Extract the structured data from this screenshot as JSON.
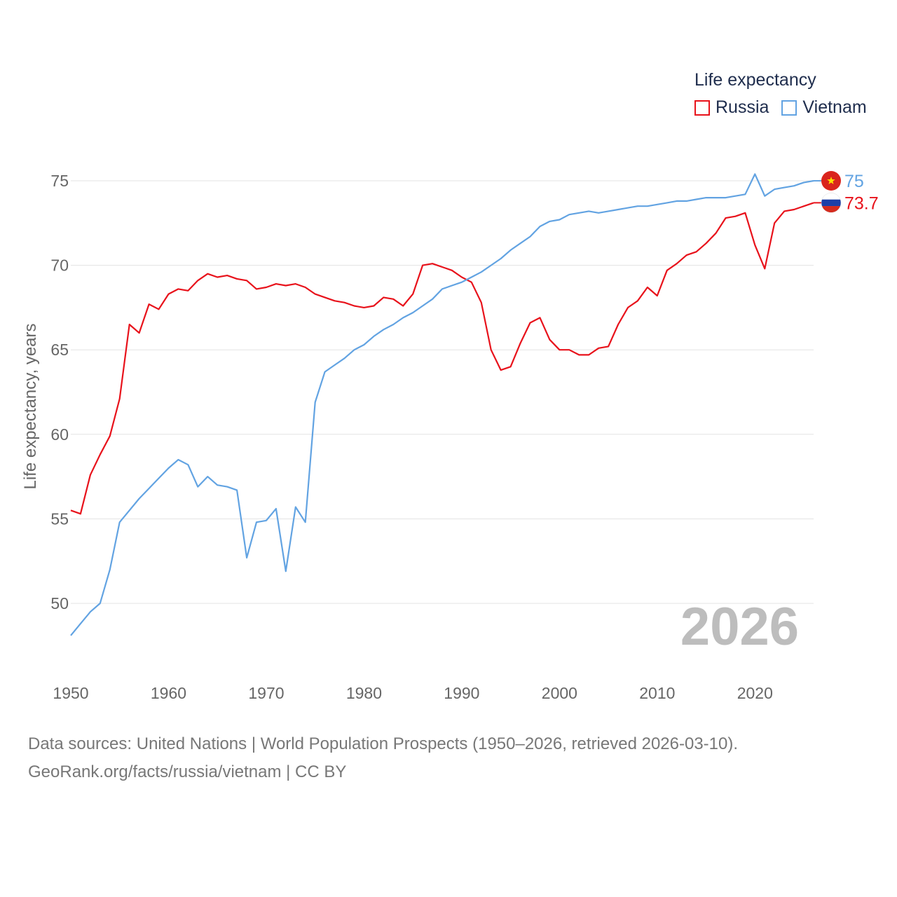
{
  "legend": {
    "title": "Life expectancy",
    "items": [
      {
        "name": "Russia",
        "color": "#e8121b"
      },
      {
        "name": "Vietnam",
        "color": "#62a3e2"
      }
    ]
  },
  "footer": {
    "line1": "Data sources: United Nations | World Population Prospects (1950–2026, retrieved 2026-03-10).",
    "line2": "GeoRank.org/facts/russia/vietnam | CC BY"
  },
  "chart_data": {
    "type": "line",
    "title": "",
    "xlabel": "",
    "ylabel": "Life expectancy, years",
    "xlim": [
      1950,
      2026
    ],
    "ylim": [
      47,
      78
    ],
    "x_ticks": [
      1950,
      1960,
      1970,
      1980,
      1990,
      2000,
      2010,
      2020
    ],
    "y_ticks": [
      50,
      55,
      60,
      65,
      70,
      75
    ],
    "year_watermark": "2026",
    "x": [
      1950,
      1951,
      1952,
      1953,
      1954,
      1955,
      1956,
      1957,
      1958,
      1959,
      1960,
      1961,
      1962,
      1963,
      1964,
      1965,
      1966,
      1967,
      1968,
      1969,
      1970,
      1971,
      1972,
      1973,
      1974,
      1975,
      1976,
      1977,
      1978,
      1979,
      1980,
      1981,
      1982,
      1983,
      1984,
      1985,
      1986,
      1987,
      1988,
      1989,
      1990,
      1991,
      1992,
      1993,
      1994,
      1995,
      1996,
      1997,
      1998,
      1999,
      2000,
      2001,
      2002,
      2003,
      2004,
      2005,
      2006,
      2007,
      2008,
      2009,
      2010,
      2011,
      2012,
      2013,
      2014,
      2015,
      2016,
      2017,
      2018,
      2019,
      2020,
      2021,
      2022,
      2023,
      2024,
      2025,
      2026
    ],
    "series": [
      {
        "name": "Russia",
        "color": "#e8121b",
        "end_label": "73.7",
        "flag": "russia-flag",
        "values": [
          55.5,
          55.3,
          57.6,
          58.8,
          59.9,
          62.1,
          66.5,
          66.0,
          67.7,
          67.4,
          68.3,
          68.6,
          68.5,
          69.1,
          69.5,
          69.3,
          69.4,
          69.2,
          69.1,
          68.6,
          68.7,
          68.9,
          68.8,
          68.9,
          68.7,
          68.3,
          68.1,
          67.9,
          67.8,
          67.6,
          67.5,
          67.6,
          68.1,
          68.0,
          67.6,
          68.3,
          70.0,
          70.1,
          69.9,
          69.7,
          69.3,
          69.0,
          67.8,
          65.0,
          63.8,
          64.0,
          65.4,
          66.6,
          66.9,
          65.6,
          65.0,
          65.0,
          64.7,
          64.7,
          65.1,
          65.2,
          66.5,
          67.5,
          67.9,
          68.7,
          68.2,
          69.7,
          70.1,
          70.6,
          70.8,
          71.3,
          71.9,
          72.8,
          72.9,
          73.1,
          71.2,
          69.8,
          72.5,
          73.2,
          73.3,
          73.5,
          73.7
        ]
      },
      {
        "name": "Vietnam",
        "color": "#62a3e2",
        "end_label": "75",
        "flag": "vietnam-flag",
        "values": [
          48.1,
          48.8,
          49.5,
          50.0,
          52.0,
          54.8,
          55.5,
          56.2,
          56.8,
          57.4,
          58.0,
          58.5,
          58.2,
          56.9,
          57.5,
          57.0,
          56.9,
          56.7,
          52.7,
          54.8,
          54.9,
          55.6,
          51.9,
          55.7,
          54.8,
          61.9,
          63.7,
          64.1,
          64.5,
          65.0,
          65.3,
          65.8,
          66.2,
          66.5,
          66.9,
          67.2,
          67.6,
          68.0,
          68.6,
          68.8,
          69.0,
          69.3,
          69.6,
          70.0,
          70.4,
          70.9,
          71.3,
          71.7,
          72.3,
          72.6,
          72.7,
          73.0,
          73.1,
          73.2,
          73.1,
          73.2,
          73.3,
          73.4,
          73.5,
          73.5,
          73.6,
          73.7,
          73.8,
          73.8,
          73.9,
          74.0,
          74.0,
          74.0,
          74.1,
          74.2,
          75.4,
          74.1,
          74.5,
          74.6,
          74.7,
          74.9,
          75.0
        ]
      }
    ]
  }
}
